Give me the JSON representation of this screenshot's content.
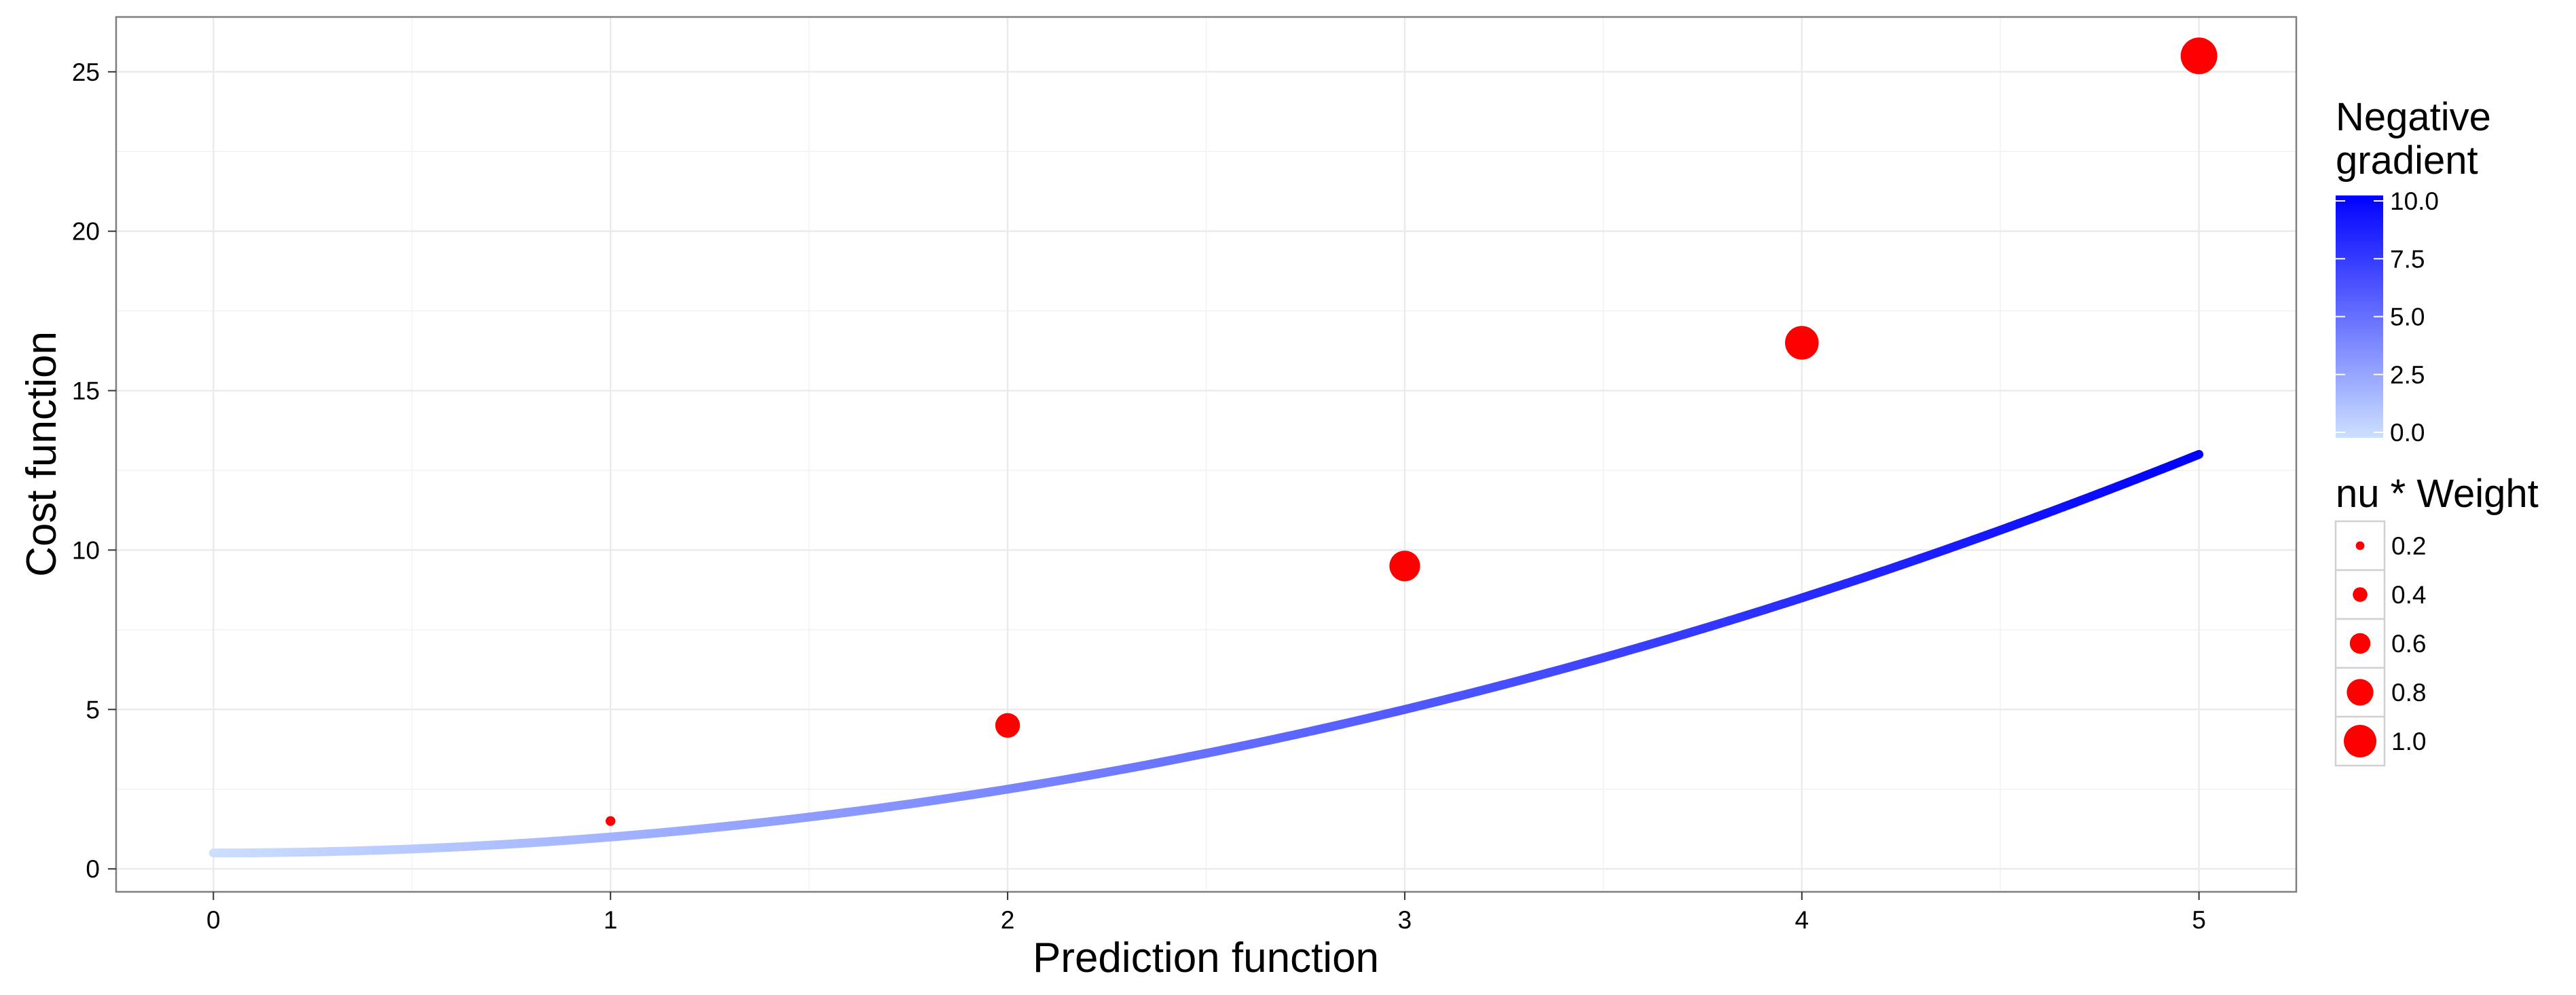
{
  "chart_data": {
    "type": "line",
    "xlabel": "Prediction function",
    "ylabel": "Cost function",
    "xlim": [
      -0.245,
      5.245
    ],
    "ylim": [
      -0.72,
      26.72
    ],
    "x_ticks": [
      0,
      1,
      2,
      3,
      4,
      5
    ],
    "x_tick_labels": [
      "0",
      "1",
      "2",
      "3",
      "4",
      "5"
    ],
    "y_ticks": [
      0,
      5,
      10,
      15,
      20,
      25
    ],
    "y_tick_labels": [
      "0",
      "5",
      "10",
      "15",
      "20",
      "25"
    ],
    "grid": true,
    "curve": {
      "description_formula": "cost = (x + 1)^2 / 2 - x",
      "x_range": [
        0,
        5
      ],
      "color_mapped_to": "negative gradient"
    },
    "points": [
      {
        "x": 1,
        "y": 1.5,
        "weight": 0.1
      },
      {
        "x": 2,
        "y": 4.5,
        "weight": 0.6
      },
      {
        "x": 3,
        "y": 9.5,
        "weight": 0.8
      },
      {
        "x": 4,
        "y": 16.5,
        "weight": 0.9
      },
      {
        "x": 5,
        "y": 25.5,
        "weight": 1.0
      }
    ],
    "point_color": "#ff0000",
    "legend_placement": "right",
    "color_legend": {
      "title_lines": [
        "Negative",
        "gradient"
      ],
      "ticks": [
        0,
        2.5,
        5,
        7.5,
        10
      ],
      "tick_labels": [
        "0.0",
        "2.5",
        "5.0",
        "7.5",
        "10.0"
      ],
      "range": [
        0,
        10
      ],
      "low_color": "#cce0ff",
      "high_color": "#0000ff"
    },
    "size_legend": {
      "title": "nu * Weight",
      "values": [
        0.2,
        0.4,
        0.6,
        0.8,
        1.0
      ],
      "labels": [
        "0.2",
        "0.4",
        "0.6",
        "0.8",
        "1.0"
      ]
    }
  }
}
